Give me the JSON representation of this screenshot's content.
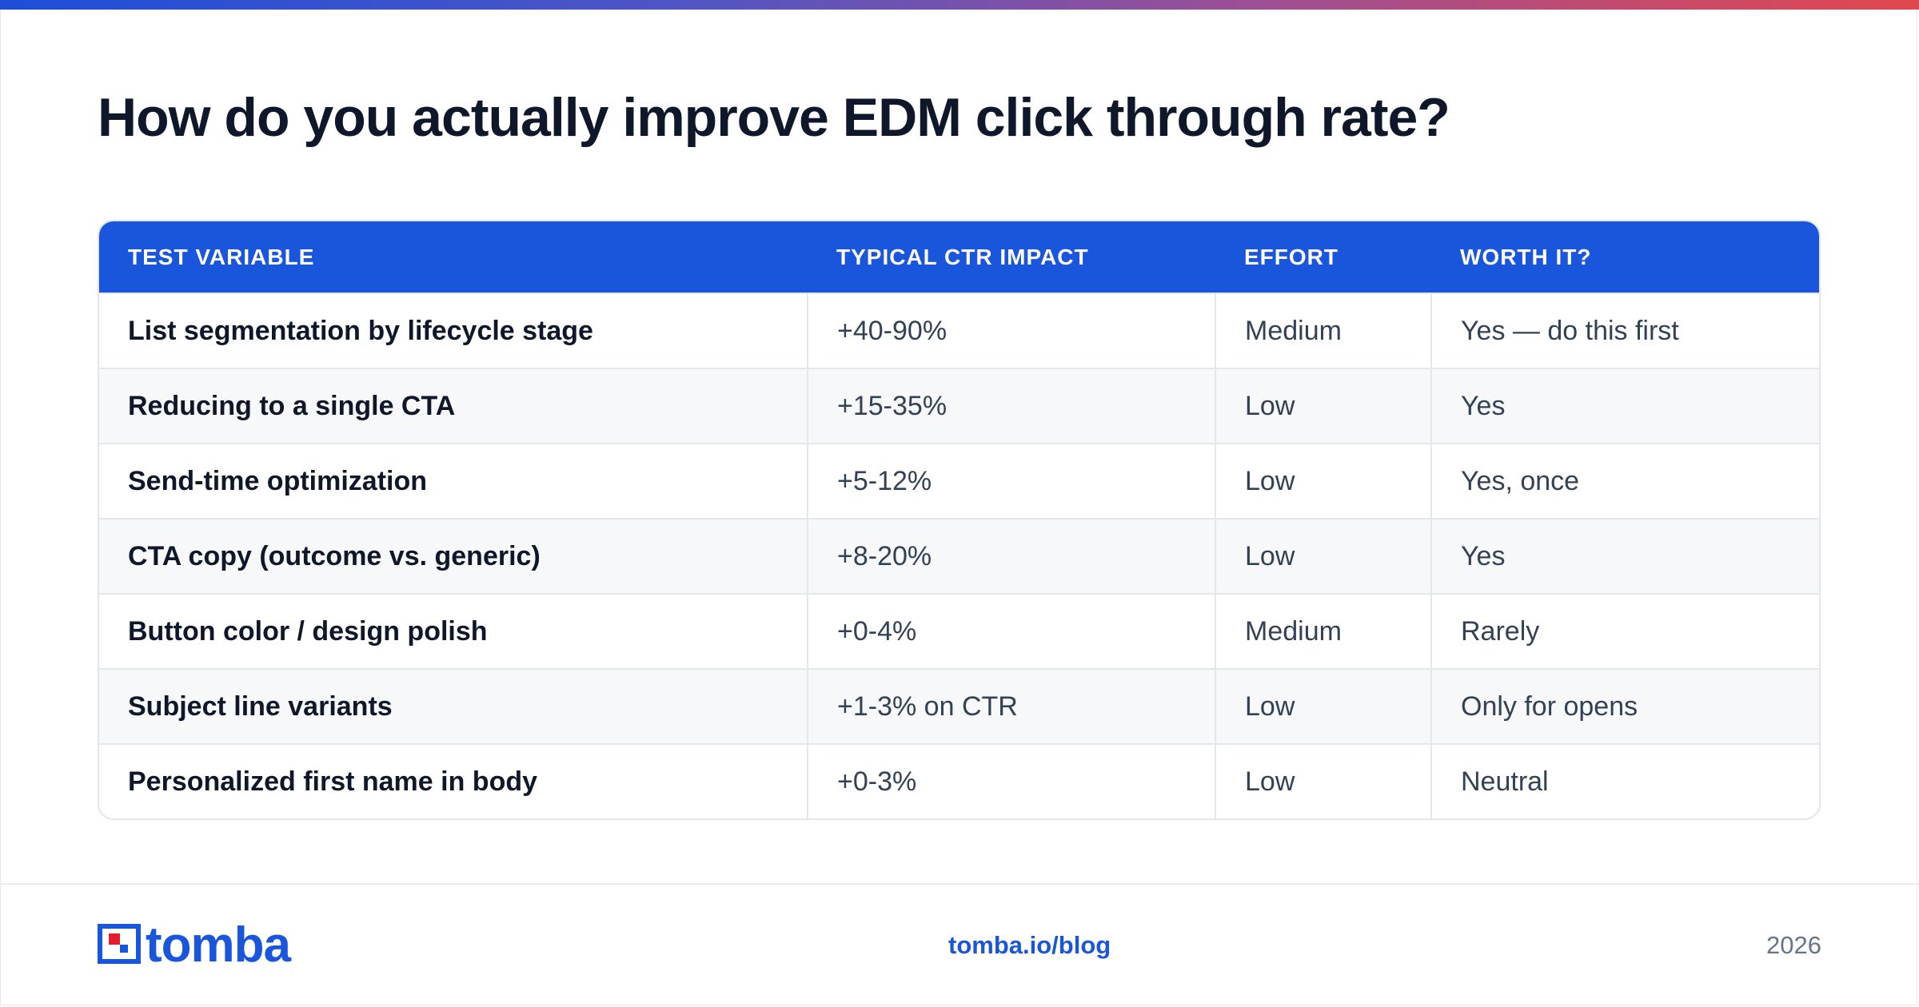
{
  "title": "How do you actually improve EDM click through rate?",
  "table": {
    "headers": [
      "TEST VARIABLE",
      "TYPICAL CTR IMPACT",
      "EFFORT",
      "WORTH IT?"
    ],
    "rows": [
      {
        "variable": "List segmentation by lifecycle stage",
        "impact": "+40-90%",
        "effort": "Medium",
        "worth": "Yes — do this first"
      },
      {
        "variable": "Reducing to a single CTA",
        "impact": "+15-35%",
        "effort": "Low",
        "worth": "Yes"
      },
      {
        "variable": "Send-time optimization",
        "impact": "+5-12%",
        "effort": "Low",
        "worth": "Yes, once"
      },
      {
        "variable": "CTA copy (outcome vs. generic)",
        "impact": "+8-20%",
        "effort": "Low",
        "worth": "Yes"
      },
      {
        "variable": "Button color / design polish",
        "impact": "+0-4%",
        "effort": "Medium",
        "worth": "Rarely"
      },
      {
        "variable": "Subject line variants",
        "impact": "+1-3% on CTR",
        "effort": "Low",
        "worth": "Only for opens"
      },
      {
        "variable": "Personalized first name in body",
        "impact": "+0-3%",
        "effort": "Low",
        "worth": "Neutral"
      }
    ]
  },
  "footer": {
    "brand": "tomba",
    "link": "tomba.io/blog",
    "year": "2026"
  },
  "colors": {
    "accent": "#1a56db",
    "logo_red": "#e11d2e",
    "title": "#0f172a"
  },
  "icons": {
    "logo_mark": "tomba-logo-icon"
  }
}
